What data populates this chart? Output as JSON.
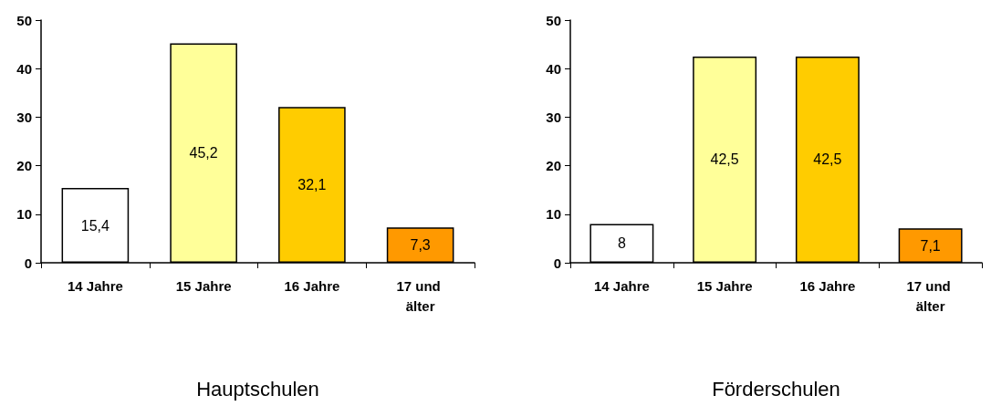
{
  "chart_data": [
    {
      "type": "bar",
      "xlabel": "Hauptschulen",
      "categories": [
        "14 Jahre",
        "15 Jahre",
        "16 Jahre",
        "17 und älter"
      ],
      "values": [
        15.4,
        45.2,
        32.1,
        7.3
      ],
      "value_labels": [
        "15,4",
        "45,2",
        "32,1",
        "7,3"
      ],
      "colors": [
        "#ffffff",
        "#ffff99",
        "#ffcc00",
        "#ff9900"
      ],
      "ylim": [
        0,
        50
      ],
      "yticks": [
        0,
        10,
        20,
        30,
        40,
        50
      ],
      "grid": false
    },
    {
      "type": "bar",
      "xlabel": "Förderschulen",
      "categories": [
        "14 Jahre",
        "15 Jahre",
        "16 Jahre",
        "17 und älter"
      ],
      "values": [
        8,
        42.5,
        42.5,
        7.1
      ],
      "value_labels": [
        "8",
        "42,5",
        "42,5",
        "7,1"
      ],
      "colors": [
        "#ffffff",
        "#ffff99",
        "#ffcc00",
        "#ff9900"
      ],
      "ylim": [
        0,
        50
      ],
      "yticks": [
        0,
        10,
        20,
        30,
        40,
        50
      ],
      "grid": false
    }
  ]
}
